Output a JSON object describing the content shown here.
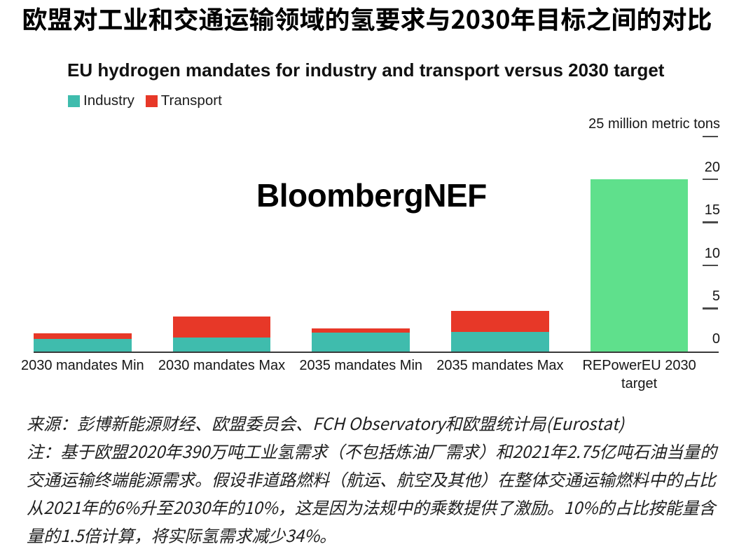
{
  "page": {
    "title": "欧盟对工业和交通运输领域的氢要求与2030年目标之间的对比"
  },
  "chart": {
    "watermark": "BloombergNEF"
  },
  "chart_data": {
    "type": "bar",
    "stacked": true,
    "title": "EU hydrogen mandates for industry and transport versus 2030 target",
    "categories": [
      "2030 mandates Min",
      "2030 mandates Max",
      "2035 mandates Min",
      "2035 mandates Max",
      "REPowerEU 2030\ntarget"
    ],
    "series": [
      {
        "name": "Industry",
        "color": "#3FBCAD",
        "values": [
          1.5,
          1.6,
          2.2,
          2.3,
          0
        ]
      },
      {
        "name": "Transport",
        "color": "#E73828",
        "values": [
          0.6,
          2.5,
          0.5,
          2.4,
          0
        ]
      },
      {
        "name": "REPowerEU 2030 target",
        "color": "#5FE08C",
        "values": [
          0,
          0,
          0,
          0,
          20
        ]
      }
    ],
    "ylabel": "25 million metric tons",
    "yticks": [
      0,
      5,
      10,
      15,
      20,
      25
    ],
    "ylim": [
      0,
      25
    ],
    "grid": false,
    "legend_position": "top-left"
  },
  "footer": {
    "source": "来源：彭博新能源财经、欧盟委员会、FCH Observatory和欧盟统计局(Eurostat)",
    "note_lines": [
      "注：基于欧盟2020年390万吨工业氢需求（不包括炼油厂需求）和2021年2.75亿吨石油当量的",
      "交通运输终端能源需求。假设非道路燃料（航运、航空及其他）在整体交通运输燃料中的占比",
      "从2021年的6%升至2030年的10%，这是因为法规中的乘数提供了激励。10%的占比按能量含",
      "量的1.5倍计算，将实际氢需求减少34%。"
    ]
  },
  "colors": {
    "background": "#FFFFFF",
    "title_text": "#000000",
    "text": "#111111",
    "axis_line": "#3A3A3A",
    "tick_dash": "#4A4A4A"
  }
}
